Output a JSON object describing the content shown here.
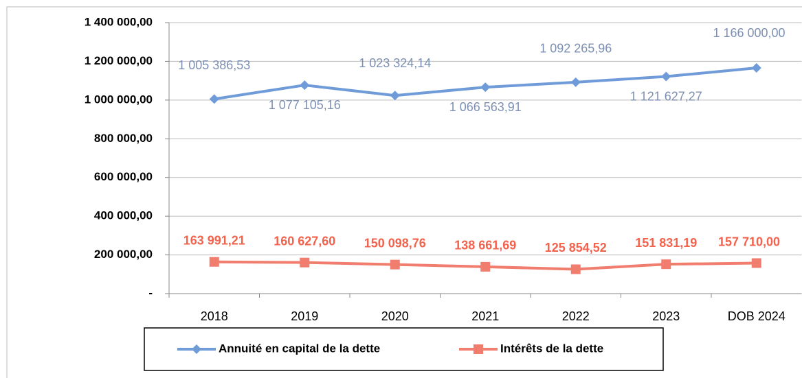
{
  "chart_data": {
    "type": "line",
    "categories": [
      "2018",
      "2019",
      "2020",
      "2021",
      "2022",
      "2023",
      "DOB 2024"
    ],
    "series": [
      {
        "name": "Annuité en capital de la dette",
        "color": "#6f9bd8",
        "label_color": "#7d8fb3",
        "marker": "diamond",
        "values": [
          1005386.53,
          1077105.16,
          1023324.14,
          1066563.91,
          1092265.96,
          1121627.27,
          1166000.0
        ],
        "value_labels": [
          "1 005 386,53",
          "1 077 105,16",
          "1 023 324,14",
          "1 066 563,91",
          "1 092 265,96",
          "1 121 627,27",
          "1 166 000,00"
        ]
      },
      {
        "name": "Intérêts de la dette",
        "color": "#f07d6e",
        "label_color": "#f2624c",
        "marker": "square",
        "values": [
          163991.21,
          160627.6,
          150098.76,
          138661.69,
          125854.52,
          151831.19,
          157710.0
        ],
        "value_labels": [
          "163 991,21",
          "160 627,60",
          "150 098,76",
          "138 661,69",
          "125 854,52",
          "151 831,19",
          "157 710,00"
        ]
      }
    ],
    "ylim": [
      0,
      1400000
    ],
    "yticks": [
      {
        "value": 0,
        "label": "-"
      },
      {
        "value": 200000,
        "label": "200 000,00"
      },
      {
        "value": 400000,
        "label": "400 000,00"
      },
      {
        "value": 600000,
        "label": "600 000,00"
      },
      {
        "value": 800000,
        "label": "800 000,00"
      },
      {
        "value": 1000000,
        "label": "1 000 000,00"
      },
      {
        "value": 1200000,
        "label": "1 200 000,00"
      },
      {
        "value": 1400000,
        "label": "1 400 000,00"
      }
    ],
    "grid": true,
    "legend": "bottom"
  }
}
